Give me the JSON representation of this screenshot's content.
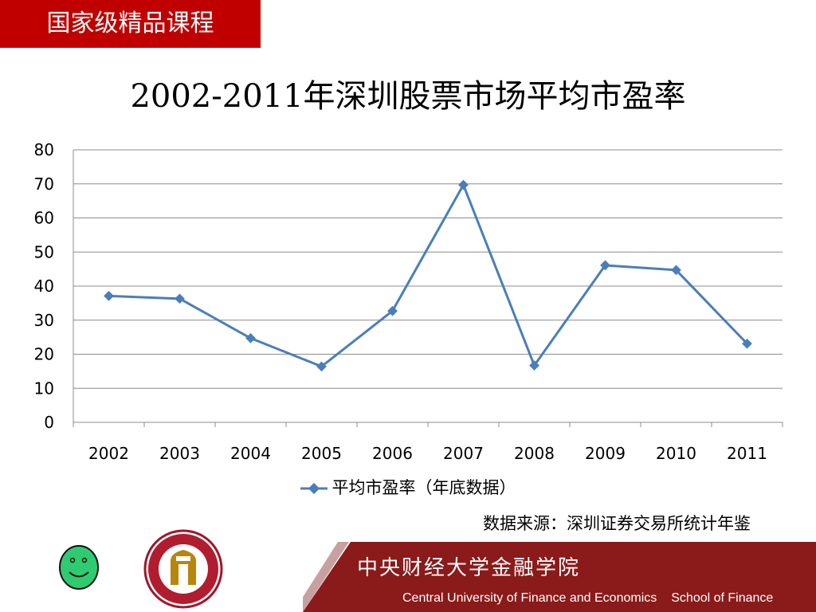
{
  "header": {
    "badge_text": "国家级精品课程"
  },
  "slide": {
    "title": "2002-2011年深圳股票市场平均市盈率"
  },
  "chart_data": {
    "type": "line",
    "categories": [
      "2002",
      "2003",
      "2004",
      "2005",
      "2006",
      "2007",
      "2008",
      "2009",
      "2010",
      "2011"
    ],
    "series": [
      {
        "name": "平均市盈率（年底数据）",
        "values": [
          37.1,
          36.3,
          24.7,
          16.4,
          32.7,
          69.7,
          16.7,
          46.1,
          44.7,
          23.1
        ],
        "color": "#4a7ebb"
      }
    ],
    "ylim": [
      0,
      80
    ],
    "yticks": [
      0,
      10,
      20,
      30,
      40,
      50,
      60,
      70,
      80
    ],
    "grid": true,
    "legend_position": "bottom"
  },
  "source_note": "数据来源：深圳证券交易所统计年鉴",
  "footer": {
    "university_cn": "中央财经大学金融学院",
    "university_en": "Central University of Finance and Economics",
    "school_en": "School of Finance"
  },
  "colors": {
    "accent_red": "#c00000",
    "footer_red": "#8b1a1a",
    "line_blue": "#4a7ebb",
    "smiley_green": "#2ecc71"
  }
}
